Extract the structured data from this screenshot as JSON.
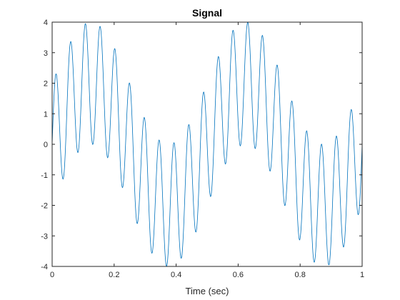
{
  "chart_data": {
    "type": "line",
    "title": "Signal",
    "xlabel": "Time (sec)",
    "ylabel": "",
    "xlim": [
      0,
      1
    ],
    "ylim": [
      -4,
      4
    ],
    "x_ticks": [
      "0",
      "0.2",
      "0.4",
      "0.6",
      "0.8",
      "1"
    ],
    "y_ticks": [
      "4",
      "3",
      "2",
      "1",
      "0",
      "-1",
      "-2",
      "-3",
      "-4"
    ],
    "grid": false,
    "box": true,
    "series": [
      {
        "color": "#0072BD",
        "function": "2*sin(2*pi*2*t) + 2*sin(2*pi*21*t)",
        "components": [
          {
            "amplitude": 2,
            "frequency_hz": 2
          },
          {
            "amplitude": 2,
            "frequency_hz": 21
          }
        ],
        "t_start": 0,
        "t_end": 1,
        "sample_rate_hz": 1000
      }
    ]
  }
}
